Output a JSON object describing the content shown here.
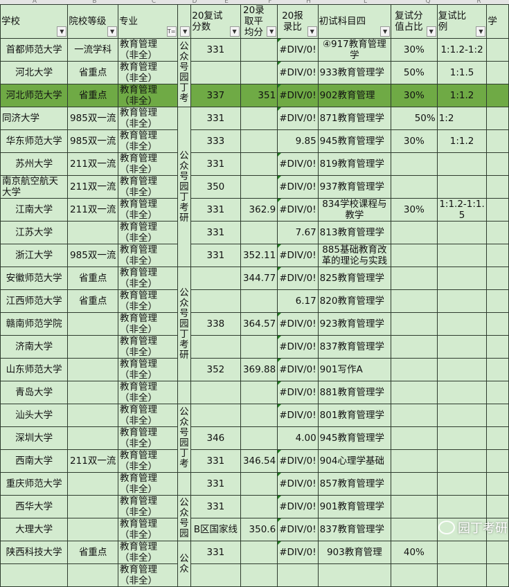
{
  "column_letters": [
    "A",
    "B",
    "C",
    "D",
    "E",
    "F",
    "H",
    "L",
    "Q",
    "R",
    ""
  ],
  "headers": [
    "学校",
    "院校等级",
    "专业",
    "",
    "20复试分数",
    "20录取平均分",
    "20报录比",
    "初试科目四",
    "复试分值占比",
    "复试比例",
    "学"
  ],
  "colors": {
    "cell_bg": "#d3ebcf",
    "highlight_row": "#6faa45",
    "border": "#2e3b2e"
  },
  "merged_notes": [
    {
      "text": "公众号园丁考",
      "rows": [
        0,
        2
      ]
    },
    {
      "text": "公众号园丁考研",
      "rows": [
        3,
        9
      ]
    },
    {
      "text": "公众号园丁考研",
      "rows": [
        10,
        14
      ]
    },
    {
      "text": "",
      "rows": [
        15,
        15
      ]
    },
    {
      "text": "公众号园丁考",
      "rows": [
        16,
        18
      ]
    },
    {
      "text": "",
      "rows": [
        19,
        19
      ]
    },
    {
      "text": "公众号园",
      "rows": [
        20,
        21
      ]
    },
    {
      "text": "公众",
      "rows": [
        22,
        23
      ]
    }
  ],
  "rows": [
    {
      "school": "首都师范大学",
      "level": "一流学科",
      "major": "教育管理（非全）",
      "score": "331",
      "avg": "",
      "ratio": "#DIV/0!",
      "subject": "④917教育管理学",
      "weight": "30%",
      "retest": "1:1.2-1:2"
    },
    {
      "school": "河北大学",
      "level": "省重点",
      "major": "教育管理（非全）",
      "score": "",
      "avg": "",
      "ratio": "#DIV/0!",
      "subject": "933教育管理学",
      "weight": "50%",
      "retest": "1:1.5"
    },
    {
      "school": "河北师范大学",
      "level": "省重点",
      "major": "教育管理（非全）",
      "score": "337",
      "avg": "351",
      "ratio": "#DIV/0!",
      "subject": "902教育管理",
      "weight": "30%",
      "retest": "1:1.2",
      "highlight": true
    },
    {
      "school": "同济大学",
      "level": "985双一流",
      "major": "教育管理（非全）",
      "score": "331",
      "avg": "",
      "ratio": "#DIV/0!",
      "subject": "871教育管理学",
      "weight": "50%",
      "retest": "1:2"
    },
    {
      "school": "华东师范大学",
      "level": "985双一流",
      "major": "教育管理（非全）",
      "score": "333",
      "avg": "",
      "ratio": "9.85",
      "subject": "945教育管理学",
      "weight": "30%",
      "retest": "1:1.2"
    },
    {
      "school": "苏州大学",
      "level": "211双一流",
      "major": "教育管理（非全）",
      "score": "331",
      "avg": "",
      "ratio": "#DIV/0!",
      "subject": "819教育管理学",
      "weight": "",
      "retest": ""
    },
    {
      "school": "南京航空航天大学",
      "level": "211双一流",
      "major": "教育管理（非全）",
      "score": "350",
      "avg": "",
      "ratio": "#DIV/0!",
      "subject": "937教育管理学",
      "weight": "",
      "retest": ""
    },
    {
      "school": "江南大学",
      "level": "211双一流",
      "major": "教育管理（非全）",
      "score": "331",
      "avg": "362.9",
      "ratio": "#DIV/0!",
      "subject": "834学校课程与教学",
      "weight": "30%",
      "retest": "1:1.2-1:1.5"
    },
    {
      "school": "江苏大学",
      "level": "",
      "major": "教育管理（非全）",
      "score": "331",
      "avg": "",
      "ratio": "7.67",
      "subject": "813教育管理学",
      "weight": "",
      "retest": ""
    },
    {
      "school": "浙江大学",
      "level": "985双一流",
      "major": "教育管理（非全）",
      "score": "331",
      "avg": "352.11",
      "ratio": "#DIV/0!",
      "subject": "885基础教育改革的理论与实践",
      "weight": "",
      "retest": ""
    },
    {
      "school": "安徽师范大学",
      "level": "省重点",
      "major": "教育管理（非全）",
      "score": "",
      "avg": "344.77",
      "ratio": "#DIV/0!",
      "subject": "825教育管理学",
      "weight": "",
      "retest": ""
    },
    {
      "school": "江西师范大学",
      "level": "省重点",
      "major": "教育管理（非全）",
      "score": "",
      "avg": "",
      "ratio": "6.17",
      "subject": "820教育管理学",
      "weight": "",
      "retest": ""
    },
    {
      "school": "赣南师范学院",
      "level": "",
      "major": "教育管理（非全）",
      "score": "338",
      "avg": "364.57",
      "ratio": "#DIV/0!",
      "subject": "923教育管理学",
      "weight": "",
      "retest": ""
    },
    {
      "school": "济南大学",
      "level": "",
      "major": "教育管理（非全）",
      "score": "",
      "avg": "",
      "ratio": "#DIV/0!",
      "subject": "837教育管理学",
      "weight": "",
      "retest": ""
    },
    {
      "school": "山东师范大学",
      "level": "",
      "major": "教育管理（非全）",
      "score": "352",
      "avg": "369.88",
      "ratio": "#DIV/0!",
      "subject": "901写作A",
      "weight": "",
      "retest": ""
    },
    {
      "school": "青岛大学",
      "level": "",
      "major": "教育管理（非全）",
      "score": "",
      "avg": "",
      "ratio": "#DIV/0!",
      "subject": "881教育管理学",
      "weight": "",
      "retest": ""
    },
    {
      "school": "汕头大学",
      "level": "",
      "major": "教育管理（非全）",
      "score": "",
      "avg": "",
      "ratio": "#DIV/0!",
      "subject": "801教育管理学",
      "weight": "",
      "retest": ""
    },
    {
      "school": "深圳大学",
      "level": "",
      "major": "教育管理（非全）",
      "score": "346",
      "avg": "",
      "ratio": "4.00",
      "subject": "945教育管理学",
      "weight": "",
      "retest": ""
    },
    {
      "school": "西南大学",
      "level": "211双一流",
      "major": "教育管理（非全）",
      "score": "331",
      "avg": "346.54",
      "ratio": "#DIV/0!",
      "subject": "904心理学基础",
      "weight": "",
      "retest": ""
    },
    {
      "school": "重庆师范大学",
      "level": "",
      "major": "教育管理（非全）",
      "score": "331",
      "avg": "",
      "ratio": "#DIV/0!",
      "subject": "857教育管理学",
      "weight": "",
      "retest": ""
    },
    {
      "school": "西华大学",
      "level": "",
      "major": "教育管理（非全）",
      "score": "331",
      "avg": "",
      "ratio": "#DIV/0!",
      "subject": "901教育管理学",
      "weight": "",
      "retest": ""
    },
    {
      "school": "大理大学",
      "level": "",
      "major": "教育管理（非全）",
      "score": "B区国家线",
      "avg": "350.6",
      "ratio": "#DIV/0!",
      "subject": "837教育管理学",
      "weight": "",
      "retest": ""
    },
    {
      "school": "陕西科技大学",
      "level": "省重点",
      "major": "教育管理（非全）",
      "score": "331",
      "avg": "",
      "ratio": "#DIV/0!",
      "subject": "903教育管理",
      "weight": "40%",
      "retest": ""
    },
    {
      "school": "",
      "level": "",
      "major": "教育管理（非全）",
      "score": "",
      "avg": "",
      "ratio": "",
      "subject": "",
      "weight": "",
      "retest": ""
    }
  ],
  "watermark": {
    "icon": "wechat-icon",
    "text": "园丁考研"
  }
}
